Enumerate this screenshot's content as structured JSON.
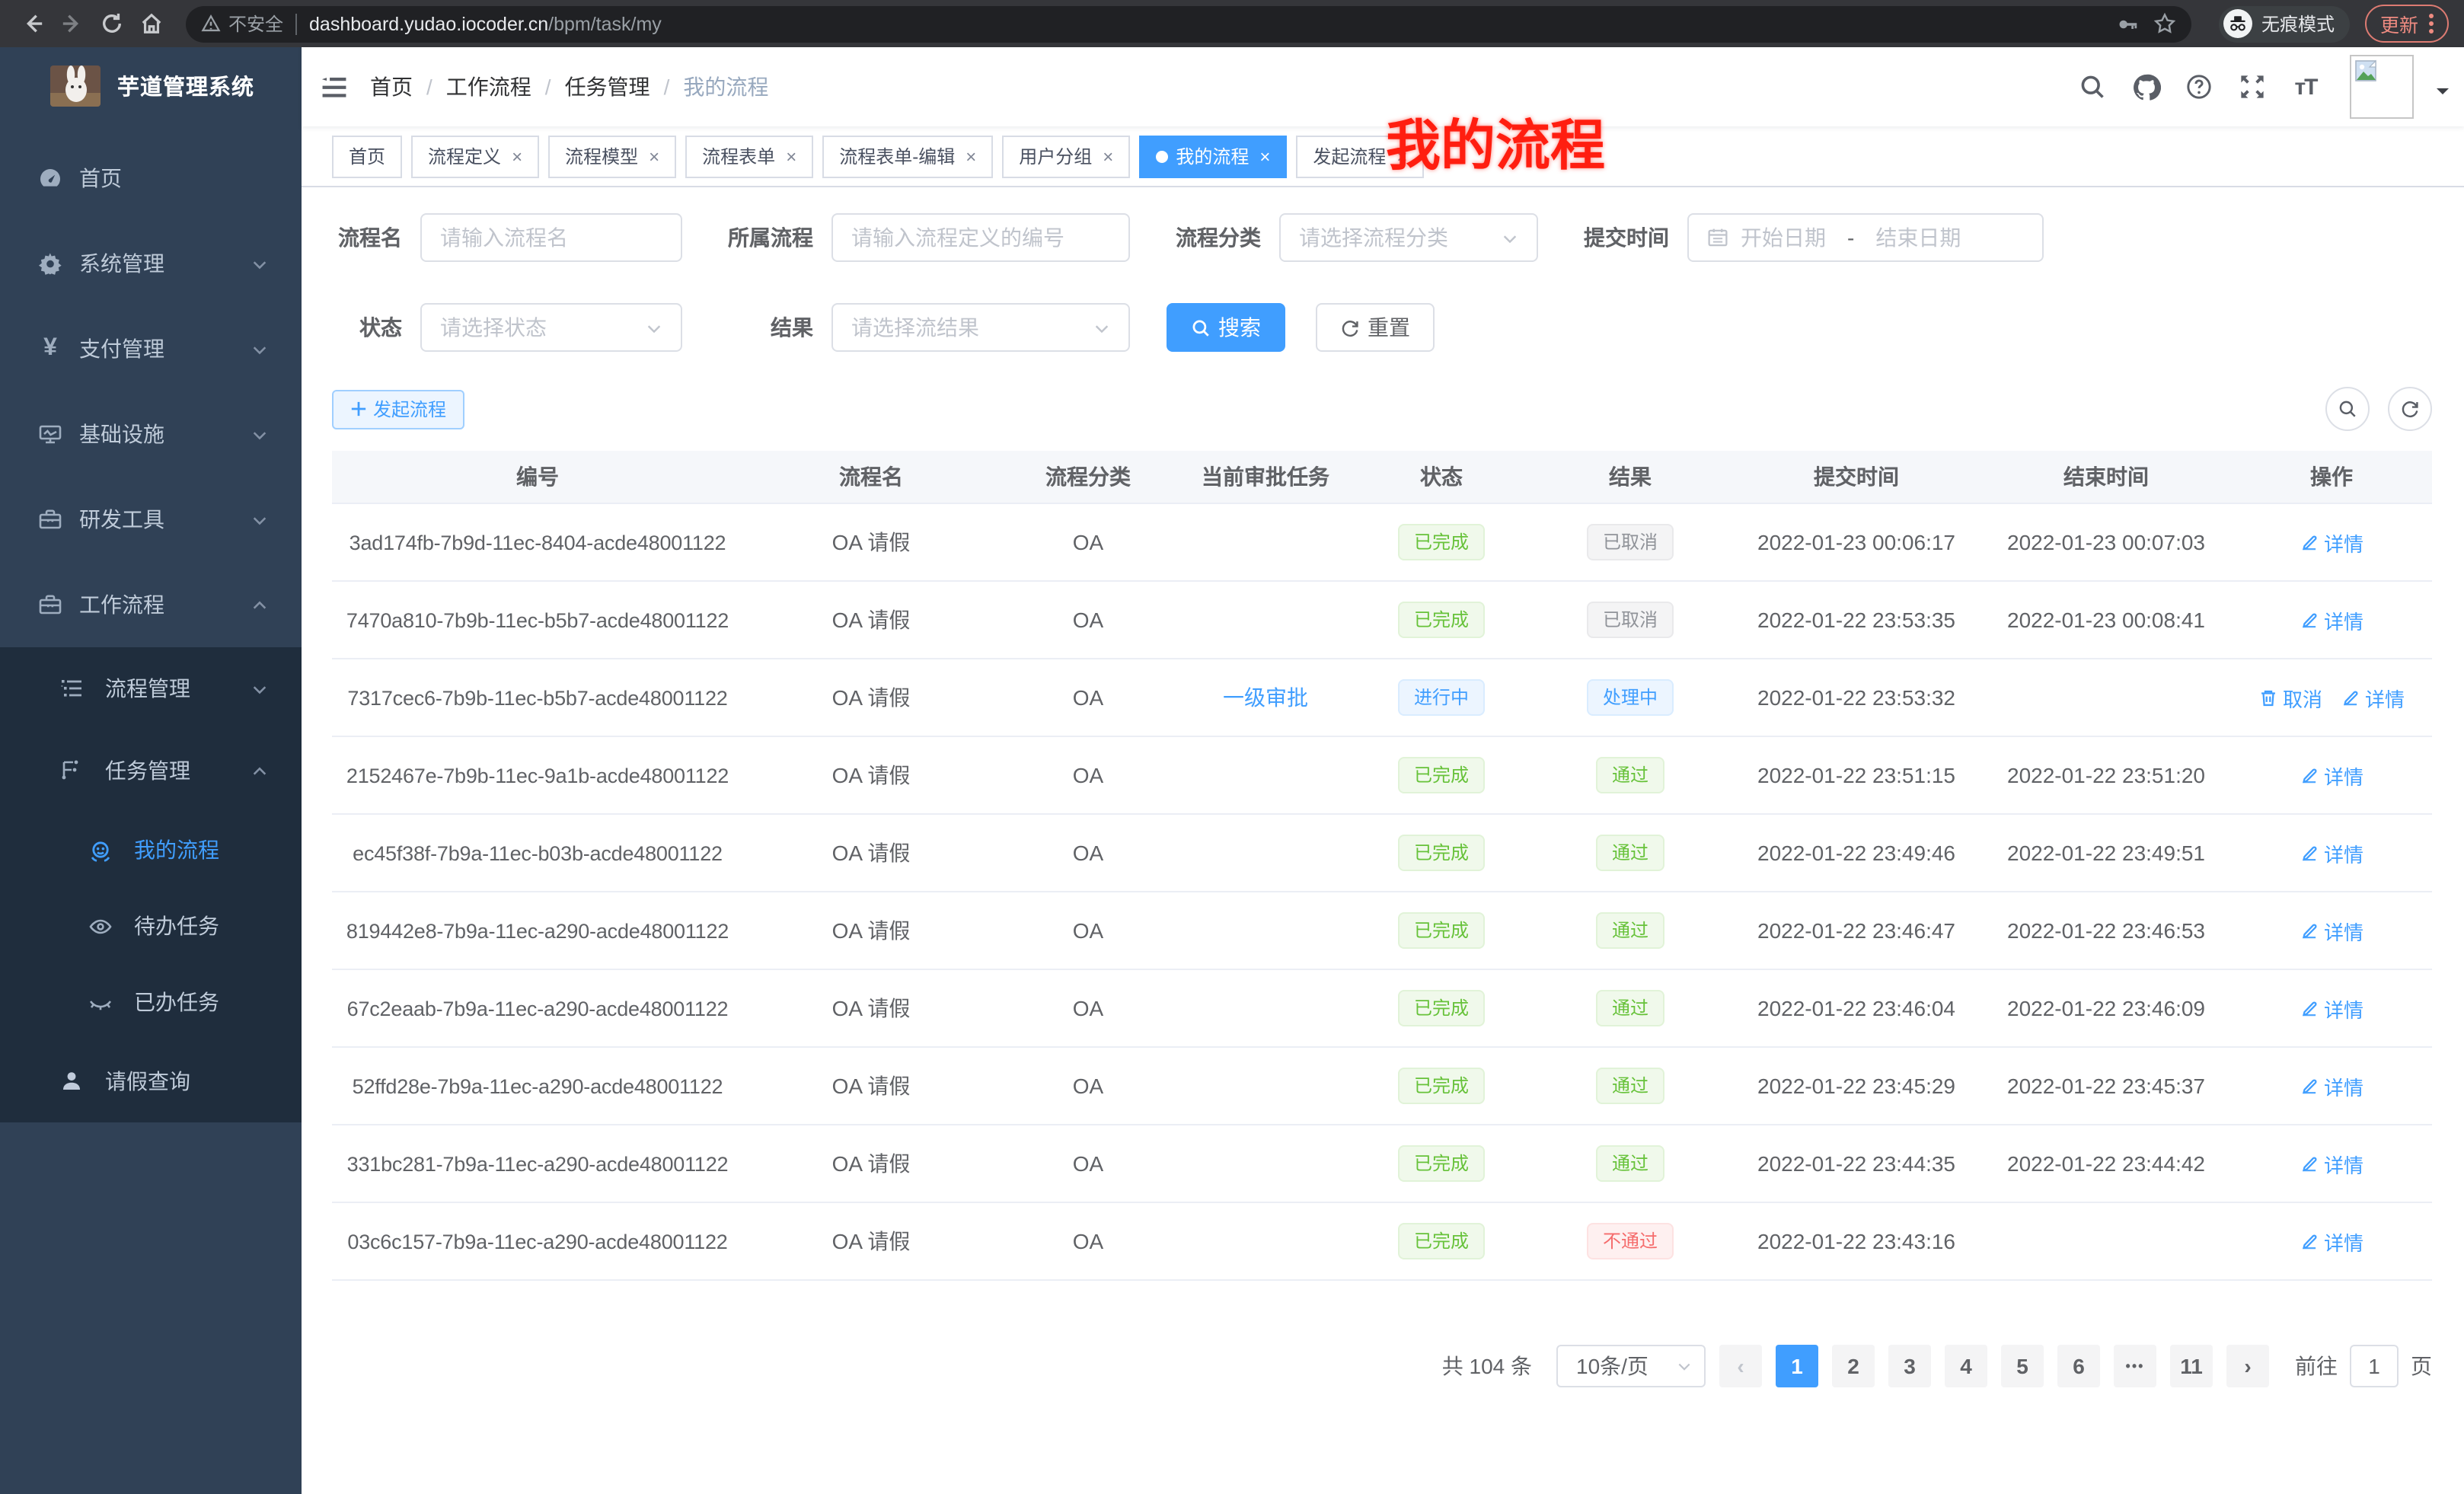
{
  "browser": {
    "security_label": "不安全",
    "url_host": "dashboard.yudao.iocoder.cn",
    "url_path": "/bpm/task/my",
    "incognito_label": "无痕模式",
    "update_label": "更新"
  },
  "sidebar": {
    "title": "芋道管理系统",
    "top_items": [
      {
        "label": "首页",
        "icon": "dashboard-icon",
        "chevron": ""
      },
      {
        "label": "系统管理",
        "icon": "gear-icon",
        "chevron": "down"
      },
      {
        "label": "支付管理",
        "icon": "yen-icon",
        "chevron": "down"
      },
      {
        "label": "基础设施",
        "icon": "monitor-icon",
        "chevron": "down"
      },
      {
        "label": "研发工具",
        "icon": "toolbox-icon",
        "chevron": "down"
      },
      {
        "label": "工作流程",
        "icon": "briefcase-icon",
        "chevron": "up"
      }
    ],
    "sub_items": [
      {
        "label": "流程管理",
        "icon": "tree-list-icon",
        "chevron": "down"
      },
      {
        "label": "任务管理",
        "icon": "flow-icon",
        "chevron": "up"
      }
    ],
    "leaf_items": [
      {
        "label": "我的流程",
        "icon": "robot-icon",
        "active": true
      },
      {
        "label": "待办任务",
        "icon": "eye-open-icon",
        "active": false
      },
      {
        "label": "已办任务",
        "icon": "eye-closed-icon",
        "active": false
      }
    ],
    "bottom_item": {
      "label": "请假查询",
      "icon": "person-icon"
    }
  },
  "header": {
    "breadcrumb": [
      "首页",
      "工作流程",
      "任务管理",
      "我的流程"
    ],
    "annotation": "我的流程"
  },
  "tabs": [
    {
      "label": "首页",
      "closable": false,
      "active": false
    },
    {
      "label": "流程定义",
      "closable": true,
      "active": false
    },
    {
      "label": "流程模型",
      "closable": true,
      "active": false
    },
    {
      "label": "流程表单",
      "closable": true,
      "active": false
    },
    {
      "label": "流程表单-编辑",
      "closable": true,
      "active": false
    },
    {
      "label": "用户分组",
      "closable": true,
      "active": false
    },
    {
      "label": "我的流程",
      "closable": true,
      "active": true
    },
    {
      "label": "发起流程",
      "closable": true,
      "active": false
    }
  ],
  "filters": {
    "name_label": "流程名",
    "name_placeholder": "请输入流程名",
    "definition_label": "所属流程",
    "definition_placeholder": "请输入流程定义的编号",
    "category_label": "流程分类",
    "category_placeholder": "请选择流程分类",
    "time_label": "提交时间",
    "time_start_placeholder": "开始日期",
    "time_separator": "-",
    "time_end_placeholder": "结束日期",
    "status_label": "状态",
    "status_placeholder": "请选择状态",
    "result_label": "结果",
    "result_placeholder": "请选择流结果",
    "search_label": "搜索",
    "reset_label": "重置"
  },
  "toolbar": {
    "create_label": "发起流程"
  },
  "table": {
    "columns": [
      "编号",
      "流程名",
      "流程分类",
      "当前审批任务",
      "状态",
      "结果",
      "提交时间",
      "结束时间",
      "操作"
    ],
    "rows": [
      {
        "id": "3ad174fb-7b9d-11ec-8404-acde48001122",
        "name": "OA 请假",
        "category": "OA",
        "task": "",
        "status": {
          "text": "已完成",
          "type": "success"
        },
        "result": {
          "text": "已取消",
          "type": "info"
        },
        "submit_time": "2022-01-23 00:06:17",
        "end_time": "2022-01-23 00:07:03",
        "actions": [
          {
            "label": "详情",
            "icon": "pen-icon"
          }
        ]
      },
      {
        "id": "7470a810-7b9b-11ec-b5b7-acde48001122",
        "name": "OA 请假",
        "category": "OA",
        "task": "",
        "status": {
          "text": "已完成",
          "type": "success"
        },
        "result": {
          "text": "已取消",
          "type": "info"
        },
        "submit_time": "2022-01-22 23:53:35",
        "end_time": "2022-01-23 00:08:41",
        "actions": [
          {
            "label": "详情",
            "icon": "pen-icon"
          }
        ]
      },
      {
        "id": "7317cec6-7b9b-11ec-b5b7-acde48001122",
        "name": "OA 请假",
        "category": "OA",
        "task": "一级审批",
        "status": {
          "text": "进行中",
          "type": "primary"
        },
        "result": {
          "text": "处理中",
          "type": "primary"
        },
        "submit_time": "2022-01-22 23:53:32",
        "end_time": "",
        "actions": [
          {
            "label": "取消",
            "icon": "trash-icon"
          },
          {
            "label": "详情",
            "icon": "pen-icon"
          }
        ]
      },
      {
        "id": "2152467e-7b9b-11ec-9a1b-acde48001122",
        "name": "OA 请假",
        "category": "OA",
        "task": "",
        "status": {
          "text": "已完成",
          "type": "success"
        },
        "result": {
          "text": "通过",
          "type": "success"
        },
        "submit_time": "2022-01-22 23:51:15",
        "end_time": "2022-01-22 23:51:20",
        "actions": [
          {
            "label": "详情",
            "icon": "pen-icon"
          }
        ]
      },
      {
        "id": "ec45f38f-7b9a-11ec-b03b-acde48001122",
        "name": "OA 请假",
        "category": "OA",
        "task": "",
        "status": {
          "text": "已完成",
          "type": "success"
        },
        "result": {
          "text": "通过",
          "type": "success"
        },
        "submit_time": "2022-01-22 23:49:46",
        "end_time": "2022-01-22 23:49:51",
        "actions": [
          {
            "label": "详情",
            "icon": "pen-icon"
          }
        ]
      },
      {
        "id": "819442e8-7b9a-11ec-a290-acde48001122",
        "name": "OA 请假",
        "category": "OA",
        "task": "",
        "status": {
          "text": "已完成",
          "type": "success"
        },
        "result": {
          "text": "通过",
          "type": "success"
        },
        "submit_time": "2022-01-22 23:46:47",
        "end_time": "2022-01-22 23:46:53",
        "actions": [
          {
            "label": "详情",
            "icon": "pen-icon"
          }
        ]
      },
      {
        "id": "67c2eaab-7b9a-11ec-a290-acde48001122",
        "name": "OA 请假",
        "category": "OA",
        "task": "",
        "status": {
          "text": "已完成",
          "type": "success"
        },
        "result": {
          "text": "通过",
          "type": "success"
        },
        "submit_time": "2022-01-22 23:46:04",
        "end_time": "2022-01-22 23:46:09",
        "actions": [
          {
            "label": "详情",
            "icon": "pen-icon"
          }
        ]
      },
      {
        "id": "52ffd28e-7b9a-11ec-a290-acde48001122",
        "name": "OA 请假",
        "category": "OA",
        "task": "",
        "status": {
          "text": "已完成",
          "type": "success"
        },
        "result": {
          "text": "通过",
          "type": "success"
        },
        "submit_time": "2022-01-22 23:45:29",
        "end_time": "2022-01-22 23:45:37",
        "actions": [
          {
            "label": "详情",
            "icon": "pen-icon"
          }
        ]
      },
      {
        "id": "331bc281-7b9a-11ec-a290-acde48001122",
        "name": "OA 请假",
        "category": "OA",
        "task": "",
        "status": {
          "text": "已完成",
          "type": "success"
        },
        "result": {
          "text": "通过",
          "type": "success"
        },
        "submit_time": "2022-01-22 23:44:35",
        "end_time": "2022-01-22 23:44:42",
        "actions": [
          {
            "label": "详情",
            "icon": "pen-icon"
          }
        ]
      },
      {
        "id": "03c6c157-7b9a-11ec-a290-acde48001122",
        "name": "OA 请假",
        "category": "OA",
        "task": "",
        "status": {
          "text": "已完成",
          "type": "success"
        },
        "result": {
          "text": "不通过",
          "type": "danger"
        },
        "submit_time": "2022-01-22 23:43:16",
        "end_time": "",
        "actions": [
          {
            "label": "详情",
            "icon": "pen-icon"
          }
        ]
      }
    ]
  },
  "pagination": {
    "total_label": "共 104 条",
    "page_size_label": "10条/页",
    "prev": "‹",
    "next": "›",
    "ellipsis": "•••",
    "pages": [
      "1",
      "2",
      "3",
      "4",
      "5",
      "6",
      "•••",
      "11"
    ],
    "active_page": "1",
    "goto_label": "前往",
    "goto_value": "1",
    "goto_unit": "页"
  },
  "colors": {
    "accent": "#409eff",
    "success": "#67c23a",
    "info": "#909399",
    "danger": "#f56c6c",
    "annotation": "#ff1e10",
    "sidebar_bg": "#304156",
    "submenu_bg": "#1f2d3d"
  }
}
